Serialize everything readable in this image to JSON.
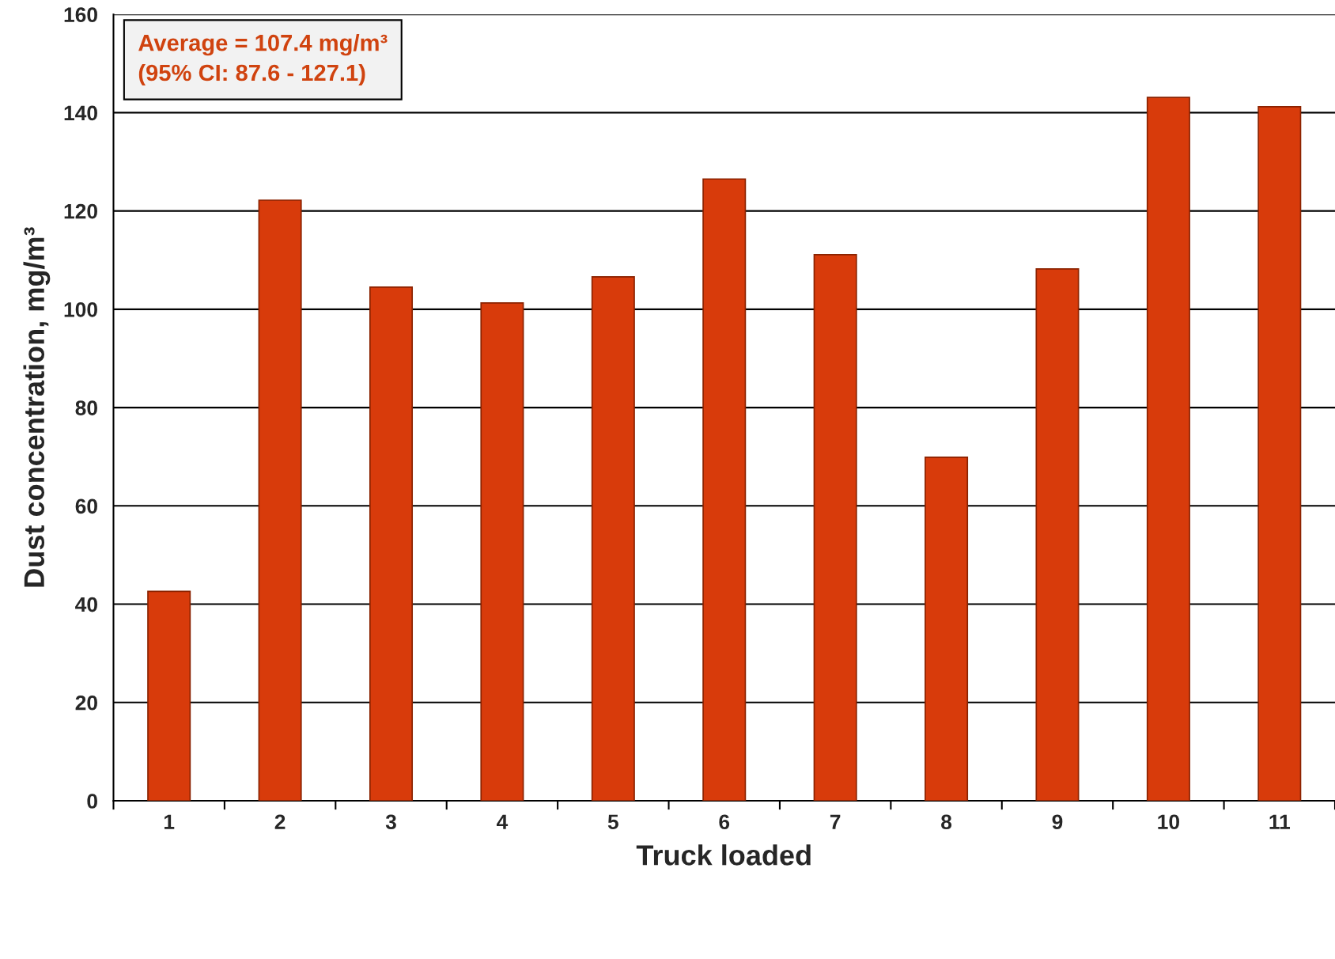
{
  "chart_data": {
    "type": "bar",
    "xlabel": "Truck loaded",
    "ylabel": "Dust concentration, mg/m³",
    "categories": [
      "1",
      "2",
      "3",
      "4",
      "5",
      "6",
      "7",
      "8",
      "9",
      "10",
      "11"
    ],
    "values": [
      42.6,
      122.2,
      104.5,
      101.3,
      106.6,
      126.5,
      111.1,
      69.9,
      108.2,
      143.1,
      141.2
    ],
    "color": "#d83b0b",
    "ylim": [
      0,
      160
    ],
    "yticks": [
      0,
      20,
      40,
      60,
      80,
      100,
      120,
      140,
      160
    ],
    "grid": "y",
    "annotations": [
      "Average = 107.4 mg/m³\n(95% CI: 87.6 - 127.1)"
    ]
  }
}
